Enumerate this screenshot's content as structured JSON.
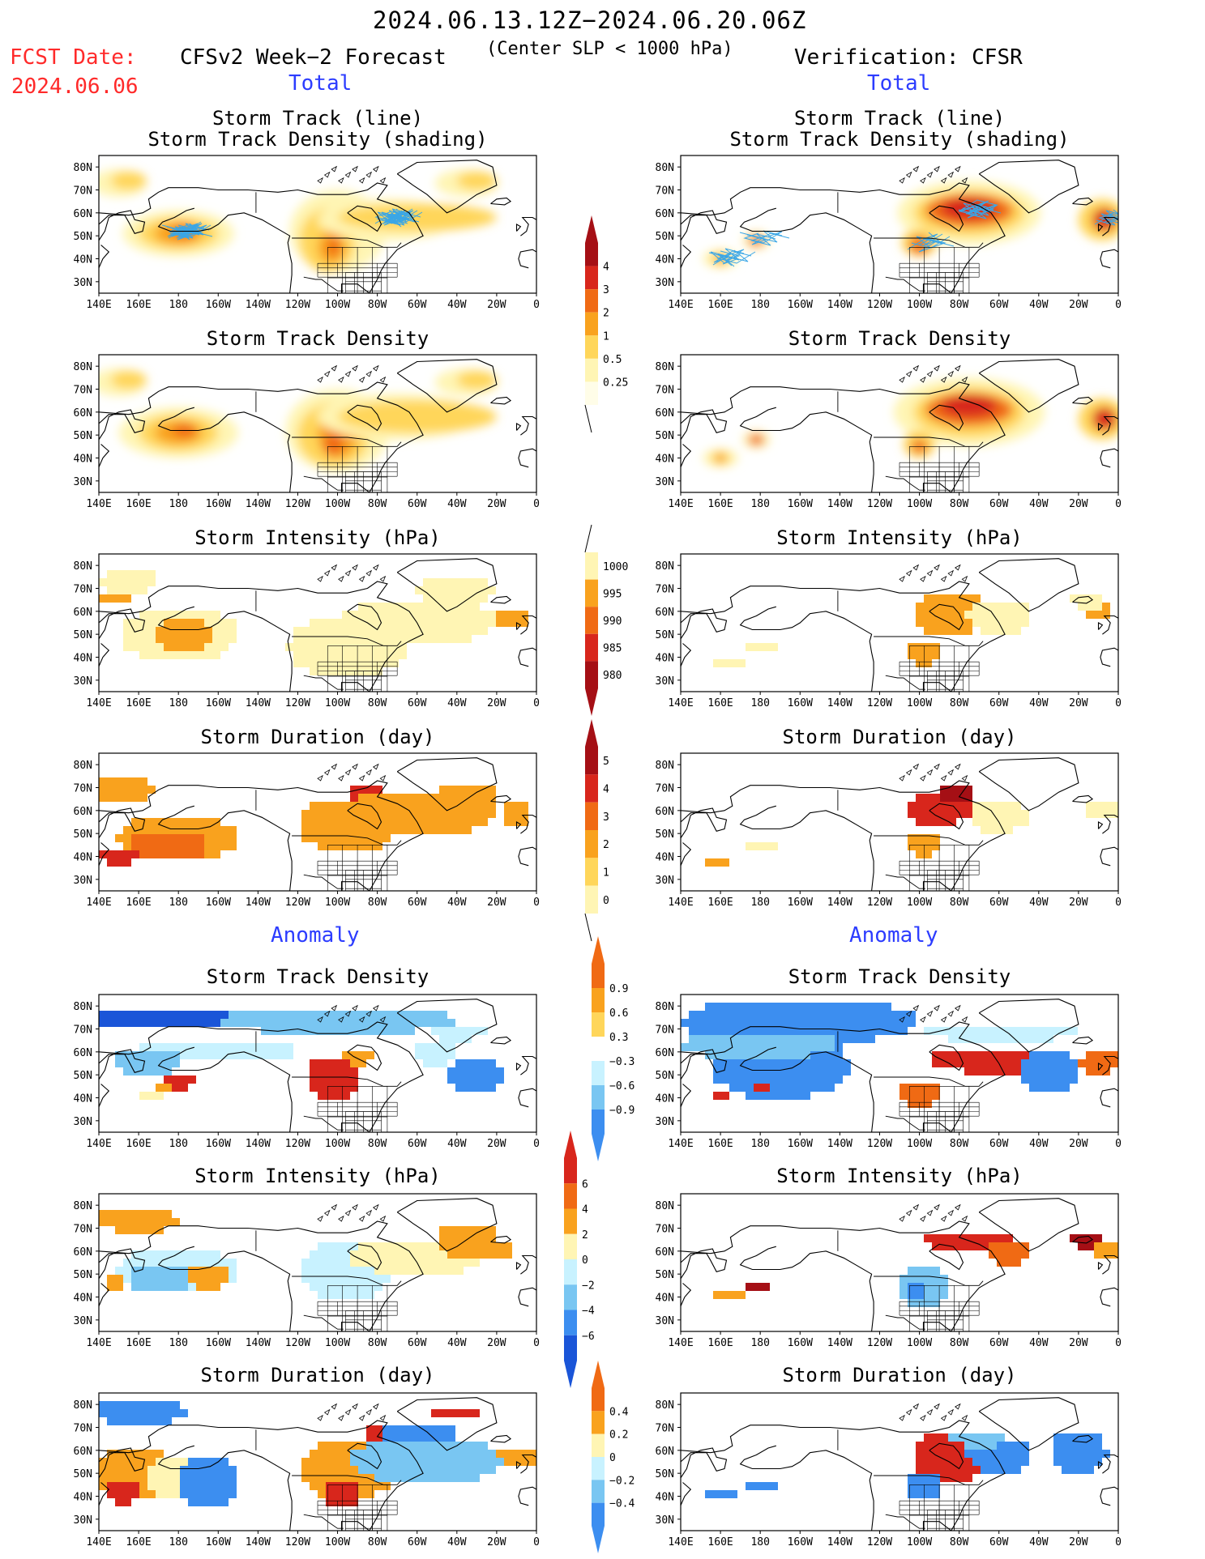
{
  "header": {
    "period": "2024.06.13.12Z−2024.06.20.06Z",
    "condition": "(Center SLP < 1000 hPa)",
    "fcst_label": "FCST Date:",
    "fcst_date": "2024.06.06",
    "forecast_title": "CFSv2 Week−2 Forecast",
    "verification_title": "Verification: CFSR"
  },
  "sections": {
    "total_left": "Total",
    "total_right": "Total",
    "anomaly_left": "Anomaly",
    "anomaly_right": "Anomaly"
  },
  "panel_titles": {
    "track_line": "Storm Track (line)",
    "track_shading": "Storm Track Density (shading)",
    "density": "Storm Track Density",
    "intensity": "Storm Intensity (hPa)",
    "duration": "Storm Duration (day)"
  },
  "axes": {
    "lon_labels": [
      "140E",
      "160E",
      "180",
      "160W",
      "140W",
      "120W",
      "100W",
      "80W",
      "60W",
      "40W",
      "20W",
      "0"
    ],
    "lat_labels": [
      "80N",
      "70N",
      "60N",
      "50N",
      "40N",
      "30N"
    ]
  },
  "colorbars": {
    "density_total": [
      "4",
      "3",
      "2",
      "1",
      "0.5",
      "0.25"
    ],
    "intensity_total": [
      "1000",
      "995",
      "990",
      "985",
      "980"
    ],
    "duration_total": [
      "5",
      "4",
      "3",
      "2",
      "1",
      "0"
    ],
    "density_anom": [
      "0.9",
      "0.6",
      "0.3",
      "−0.3",
      "−0.6",
      "−0.9"
    ],
    "intensity_anom": [
      "6",
      "4",
      "2",
      "0",
      "−2",
      "−4",
      "−6"
    ],
    "duration_anom": [
      "0.4",
      "0.2",
      "0",
      "−0.2",
      "−0.4"
    ]
  },
  "colors": {
    "pale_yellow": "#fff5b4",
    "light_orange": "#ffd65a",
    "orange": "#f9a21e",
    "dark_orange": "#f06a14",
    "red": "#d8261c",
    "dark_red": "#a50f15",
    "light_blue": "#c8f2ff",
    "mid_blue": "#79c6f2",
    "blue": "#3c8ef0",
    "dark_blue": "#1a55d8",
    "track_line": "#3aa6e6",
    "title_red": "#ff2a2a",
    "title_blue": "#2c3cff"
  }
}
